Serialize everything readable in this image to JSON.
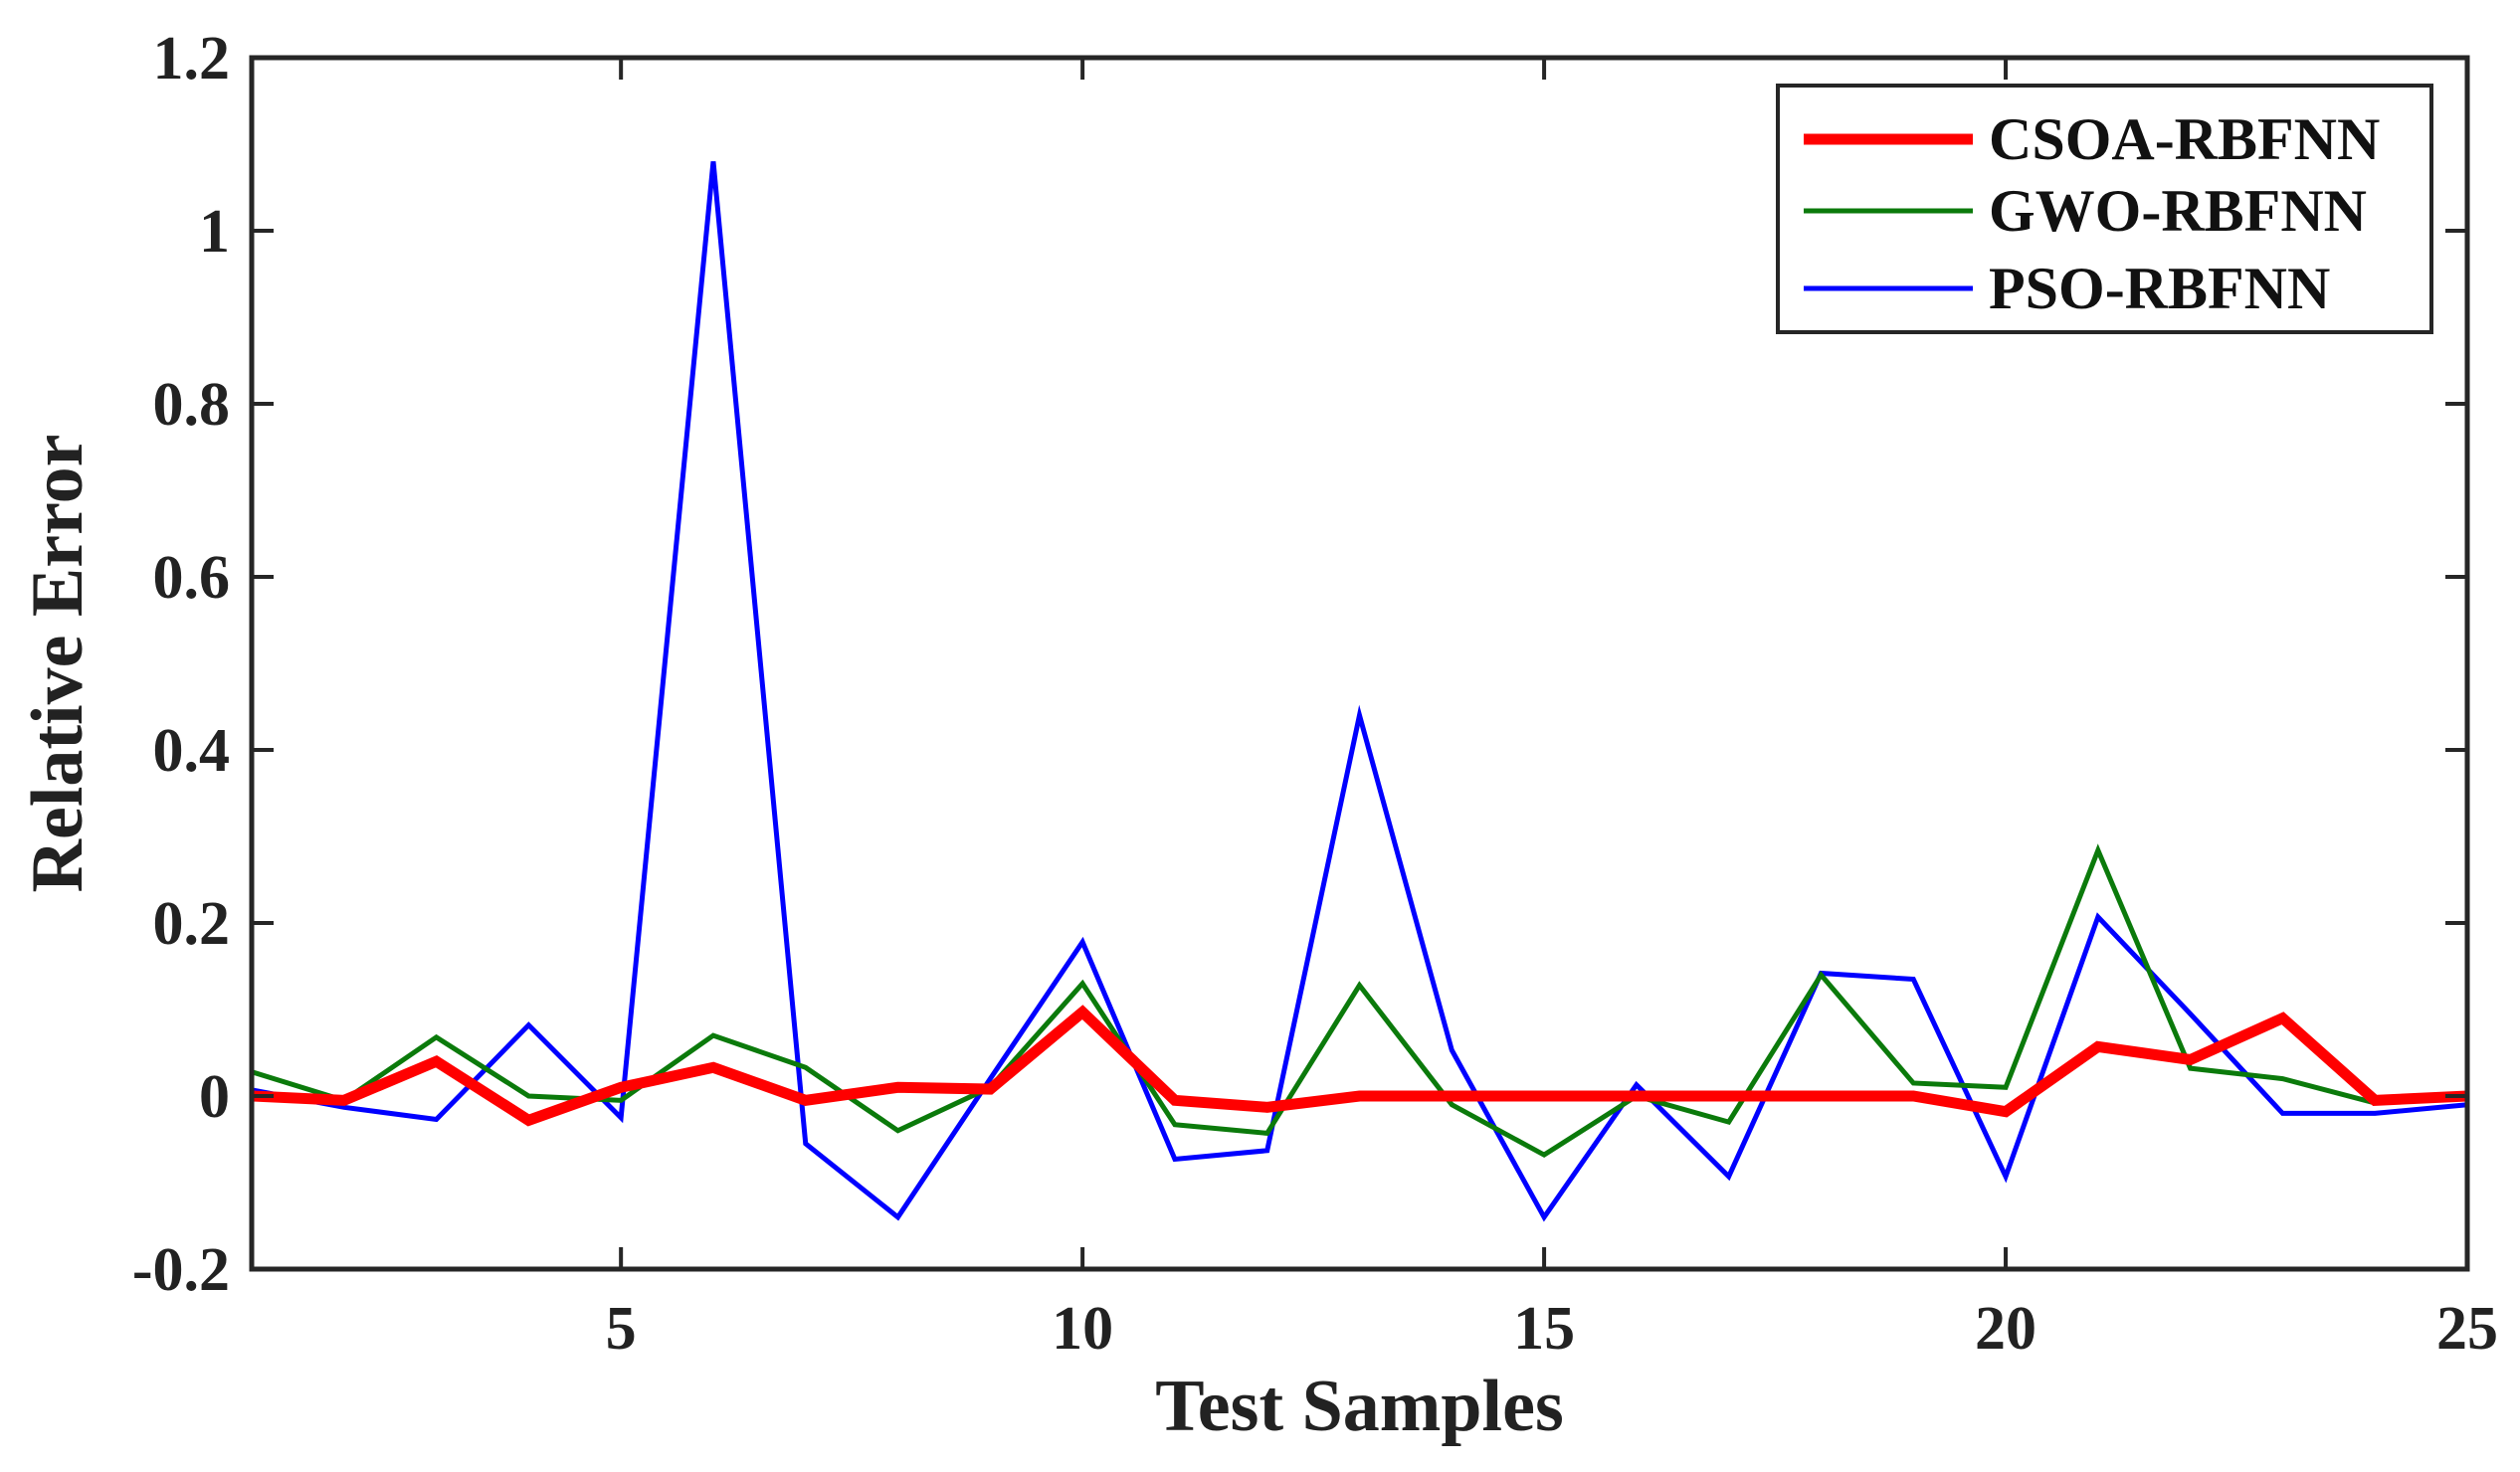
{
  "chart_data": {
    "type": "line",
    "title": "",
    "xlabel": "Test Samples",
    "ylabel": "Relative Error",
    "xlim": [
      1,
      25
    ],
    "ylim": [
      -0.2,
      1.2
    ],
    "xticks": [
      5,
      10,
      15,
      20,
      25
    ],
    "xtick_labels": [
      "5",
      "10",
      "15",
      "20",
      "25"
    ],
    "yticks": [
      -0.2,
      0,
      0.2,
      0.4,
      0.6,
      0.8,
      1,
      1.2
    ],
    "ytick_labels": [
      "-0.2",
      "0",
      "0.2",
      "0.4",
      "0.6",
      "0.8",
      "1",
      "1.2"
    ],
    "grid": false,
    "legend_position": "top-right",
    "x": [
      1,
      2,
      3,
      4,
      5,
      6,
      7,
      8,
      9,
      10,
      11,
      12,
      13,
      14,
      15,
      16,
      17,
      18,
      19,
      20,
      21,
      22,
      23,
      24,
      25
    ],
    "series": [
      {
        "name": "CSOA-RBFNN",
        "color": "#ff0000",
        "thick": true,
        "values": [
          0.0,
          -0.005,
          0.04,
          -0.028,
          0.01,
          0.033,
          -0.005,
          0.01,
          0.008,
          0.097,
          -0.005,
          -0.013,
          0.0,
          0.0,
          0.0,
          0.0,
          0.0,
          0.0,
          0.0,
          -0.018,
          0.057,
          0.042,
          0.09,
          -0.005,
          0.0
        ]
      },
      {
        "name": "GWO-RBFNN",
        "color": "#0b7a0b",
        "thick": false,
        "values": [
          0.028,
          -0.005,
          0.068,
          0.0,
          -0.005,
          0.07,
          0.033,
          -0.04,
          0.01,
          0.13,
          -0.033,
          -0.043,
          0.128,
          -0.01,
          -0.068,
          0.0,
          -0.03,
          0.14,
          0.015,
          0.01,
          0.284,
          0.032,
          0.02,
          -0.008,
          0.0
        ]
      },
      {
        "name": "PSO-RBFNN",
        "color": "#0000ff",
        "thick": false,
        "values": [
          0.007,
          -0.013,
          -0.027,
          0.082,
          -0.025,
          1.08,
          -0.055,
          -0.14,
          0.02,
          0.178,
          -0.073,
          -0.063,
          0.44,
          0.053,
          -0.14,
          0.013,
          -0.093,
          0.142,
          0.135,
          -0.093,
          0.207,
          0.095,
          -0.02,
          -0.02,
          -0.01
        ]
      }
    ]
  }
}
